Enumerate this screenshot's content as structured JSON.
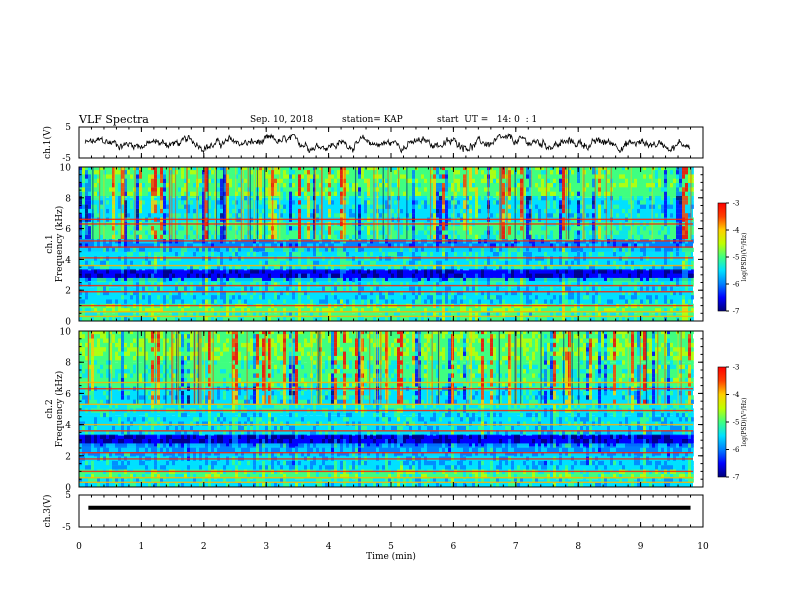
{
  "header": {
    "title": "VLF Spectra",
    "date": "Sep. 10, 2018",
    "station": "station= KAP",
    "start_ut": "start  UT =   14: 0  : 1"
  },
  "chart_data": [
    {
      "type": "line",
      "name": "waveform-ch1",
      "ylabel": "ch.1(V)",
      "ylim": [
        -5,
        5
      ],
      "ytick_labels": [
        "5",
        "-5"
      ],
      "xlim": [
        0,
        10
      ],
      "description_series": "noisy voltage trace fluctuating roughly between -3 and 2.5 V",
      "x_range_data": [
        0.1,
        9.8
      ]
    },
    {
      "type": "heatmap",
      "name": "spectrogram-ch1",
      "ylabel": "ch.1\nFrequency  (kHz)",
      "ylim": [
        0,
        10
      ],
      "yticks": [
        0,
        2,
        4,
        6,
        8,
        10
      ],
      "xlim": [
        0,
        10
      ],
      "colorbar": {
        "label": "log(PSD)(V²/Hz)",
        "range": [
          -7,
          -3
        ],
        "ticks": [
          "-3",
          "-4",
          "-5",
          "-6",
          "-7"
        ],
        "colors": [
          "#00007a",
          "#0000ff",
          "#0080ff",
          "#00e0ff",
          "#40ff80",
          "#c0ff00",
          "#ffd000",
          "#ff4000",
          "#ff0000"
        ]
      },
      "bands_khz": [
        {
          "from": 0,
          "to": 0.5,
          "level": 0.45
        },
        {
          "from": 0.5,
          "to": 1.0,
          "level": 0.55
        },
        {
          "from": 1.0,
          "to": 2.2,
          "level": 0.38
        },
        {
          "from": 2.2,
          "to": 2.6,
          "level": 0.42
        },
        {
          "from": 2.6,
          "to": 3.3,
          "level": 0.13
        },
        {
          "from": 3.3,
          "to": 4.5,
          "level": 0.4
        },
        {
          "from": 4.5,
          "to": 5.2,
          "level": 0.3
        },
        {
          "from": 5.2,
          "to": 6.4,
          "level": 0.46
        },
        {
          "from": 6.4,
          "to": 8.0,
          "level": 0.4
        },
        {
          "from": 8.0,
          "to": 10.0,
          "level": 0.52
        }
      ],
      "lines_khz": [
        0.3,
        0.6,
        1.0,
        1.9,
        2.3,
        3.6,
        4.1,
        4.8,
        5.2,
        6.3,
        6.6
      ]
    },
    {
      "type": "heatmap",
      "name": "spectrogram-ch2",
      "ylabel": "ch.2\nFrequency  (kHz)",
      "ylim": [
        0,
        10
      ],
      "yticks": [
        0,
        2,
        4,
        6,
        8,
        10
      ],
      "xlim": [
        0,
        10
      ],
      "colorbar": {
        "label": "log(PSD)(V²/Hz)",
        "range": [
          -7,
          -3
        ],
        "ticks": [
          "-3",
          "-4",
          "-5",
          "-6",
          "-7"
        ],
        "colors": [
          "#00007a",
          "#0000ff",
          "#0080ff",
          "#00e0ff",
          "#40ff80",
          "#c0ff00",
          "#ffd000",
          "#ff4000",
          "#ff0000"
        ]
      },
      "bands_khz": [
        {
          "from": 0,
          "to": 0.5,
          "level": 0.4
        },
        {
          "from": 0.5,
          "to": 1.0,
          "level": 0.5
        },
        {
          "from": 1.0,
          "to": 2.0,
          "level": 0.36
        },
        {
          "from": 2.0,
          "to": 2.6,
          "level": 0.32
        },
        {
          "from": 2.6,
          "to": 3.3,
          "level": 0.12
        },
        {
          "from": 3.3,
          "to": 4.6,
          "level": 0.38
        },
        {
          "from": 4.6,
          "to": 5.3,
          "level": 0.44
        },
        {
          "from": 5.3,
          "to": 6.3,
          "level": 0.4
        },
        {
          "from": 6.3,
          "to": 8.0,
          "level": 0.48
        },
        {
          "from": 8.0,
          "to": 10.0,
          "level": 0.55
        }
      ],
      "lines_khz": [
        0.3,
        0.6,
        1.0,
        1.8,
        2.2,
        3.6,
        4.0,
        4.9,
        5.3,
        6.3,
        6.7
      ]
    },
    {
      "type": "line",
      "name": "waveform-ch3",
      "ylabel": "ch.3(V)",
      "ylim": [
        -5,
        5
      ],
      "ytick_labels": [
        "5",
        "-5"
      ],
      "xlim": [
        0,
        10
      ],
      "level_v": 1,
      "x_range_data": [
        0.15,
        9.8
      ]
    }
  ],
  "xaxis": {
    "label": "Time  (min)",
    "ticks": [
      "0",
      "1",
      "2",
      "3",
      "4",
      "5",
      "6",
      "7",
      "8",
      "9",
      "10"
    ]
  }
}
